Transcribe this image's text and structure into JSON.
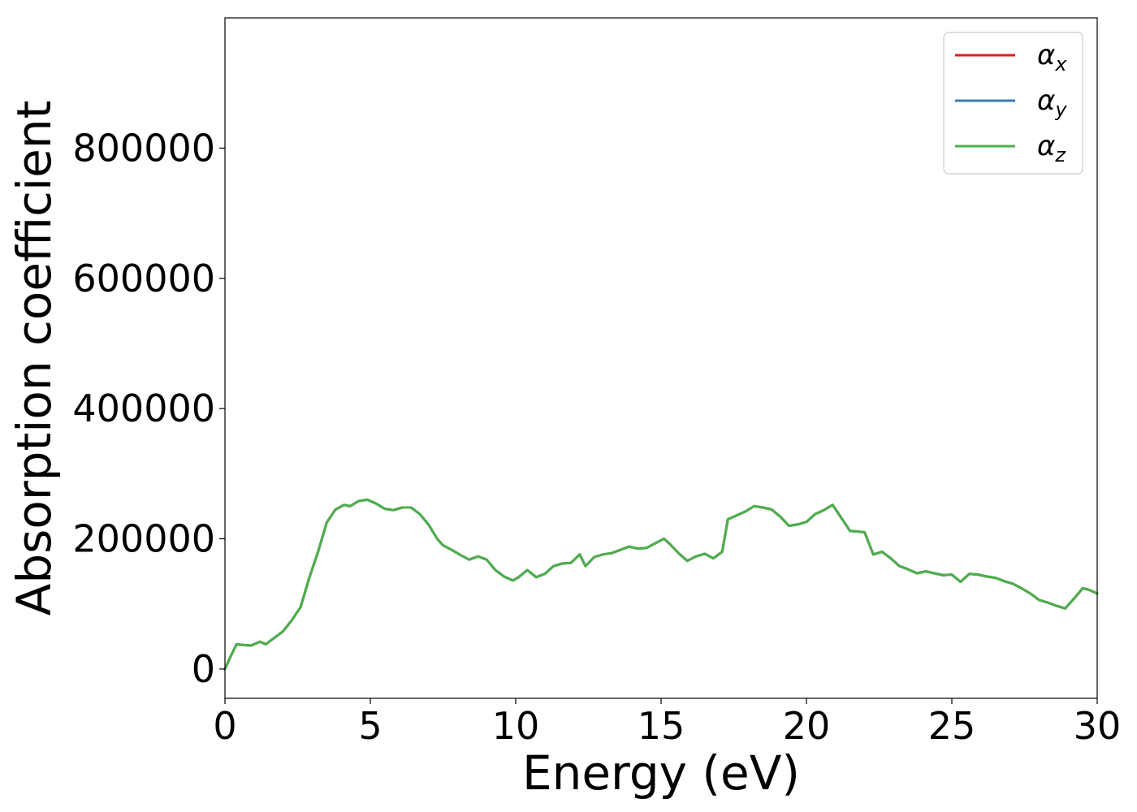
{
  "chart_data": {
    "type": "line",
    "xlabel": "Energy (eV)",
    "ylabel": "Absorption coefficient",
    "xlim": [
      0,
      30
    ],
    "ylim": [
      -45000,
      1000000
    ],
    "xticks": [
      0,
      5,
      10,
      15,
      20,
      25,
      30
    ],
    "yticks": [
      0,
      200000,
      400000,
      600000,
      800000
    ],
    "grid": false,
    "legend_position": "top-right",
    "x": [
      0,
      0.2,
      0.4,
      0.6,
      0.9,
      1.2,
      1.4,
      1.7,
      2.0,
      2.3,
      2.6,
      2.9,
      3.2,
      3.5,
      3.8,
      4.1,
      4.3,
      4.6,
      4.9,
      5.2,
      5.5,
      5.8,
      6.1,
      6.4,
      6.7,
      7.0,
      7.3,
      7.5,
      7.8,
      8.1,
      8.4,
      8.7,
      9.0,
      9.3,
      9.6,
      9.9,
      10.1,
      10.4,
      10.7,
      11.0,
      11.3,
      11.6,
      11.9,
      12.2,
      12.4,
      12.7,
      13.0,
      13.3,
      13.6,
      13.9,
      14.2,
      14.5,
      14.8,
      15.1,
      15.3,
      15.6,
      15.9,
      16.2,
      16.5,
      16.8,
      17.1,
      17.3,
      17.6,
      17.9,
      18.2,
      18.5,
      18.8,
      19.1,
      19.4,
      19.7,
      20.0,
      20.3,
      20.6,
      20.9,
      21.2,
      21.5,
      21.8,
      22.0,
      22.3,
      22.6,
      22.9,
      23.2,
      23.5,
      23.8,
      24.1,
      24.4,
      24.7,
      25.0,
      25.3,
      25.6,
      25.9,
      26.2,
      26.5,
      26.8,
      27.1,
      27.4,
      27.7,
      28.0,
      28.3,
      28.6,
      28.9,
      29.2,
      29.5,
      29.7,
      30.0
    ],
    "series": [
      {
        "name": "α",
        "subscript": "x",
        "color": "#e41a1c",
        "values": [
          0,
          20000,
          38000,
          37000,
          36000,
          42000,
          38000,
          48000,
          58000,
          75000,
          95000,
          140000,
          180000,
          225000,
          245000,
          252000,
          250000,
          258000,
          260000,
          254000,
          246000,
          244000,
          248000,
          248000,
          238000,
          222000,
          200000,
          190000,
          183000,
          175000,
          168000,
          173000,
          168000,
          152000,
          142000,
          136000,
          141000,
          152000,
          141000,
          146000,
          158000,
          162000,
          163000,
          176000,
          158000,
          172000,
          176000,
          178000,
          183000,
          188000,
          185000,
          186000,
          193000,
          200000,
          192000,
          178000,
          166000,
          173000,
          177000,
          170000,
          180000,
          230000,
          236000,
          242000,
          250000,
          248000,
          245000,
          234000,
          220000,
          222000,
          226000,
          238000,
          244000,
          252000,
          232000,
          212000,
          211000,
          210000,
          176000,
          180000,
          170000,
          158000,
          153000,
          147000,
          150000,
          147000,
          144000,
          145000,
          134000,
          146000,
          145000,
          142000,
          140000,
          135000,
          131000,
          124000,
          116000,
          106000,
          102000,
          97000,
          93000,
          108000,
          124000,
          122000,
          116000
        ]
      },
      {
        "name": "α",
        "subscript": "y",
        "color": "#377eb8",
        "values": [
          0,
          20000,
          38000,
          37000,
          36000,
          42000,
          38000,
          48000,
          58000,
          75000,
          95000,
          140000,
          180000,
          225000,
          245000,
          252000,
          250000,
          258000,
          260000,
          254000,
          246000,
          244000,
          248000,
          248000,
          238000,
          222000,
          200000,
          190000,
          183000,
          175000,
          168000,
          173000,
          168000,
          152000,
          142000,
          136000,
          141000,
          152000,
          141000,
          146000,
          158000,
          162000,
          163000,
          176000,
          158000,
          172000,
          176000,
          178000,
          183000,
          188000,
          185000,
          186000,
          193000,
          200000,
          192000,
          178000,
          166000,
          173000,
          177000,
          170000,
          180000,
          230000,
          236000,
          242000,
          250000,
          248000,
          245000,
          234000,
          220000,
          222000,
          226000,
          238000,
          244000,
          252000,
          232000,
          212000,
          211000,
          210000,
          176000,
          180000,
          170000,
          158000,
          153000,
          147000,
          150000,
          147000,
          144000,
          145000,
          134000,
          146000,
          145000,
          142000,
          140000,
          135000,
          131000,
          124000,
          116000,
          106000,
          102000,
          97000,
          93000,
          108000,
          124000,
          122000,
          116000
        ]
      },
      {
        "name": "α",
        "subscript": "z",
        "color": "#4daf4a",
        "values": [
          0,
          20000,
          38000,
          37000,
          36000,
          42000,
          38000,
          48000,
          58000,
          75000,
          95000,
          140000,
          180000,
          225000,
          245000,
          252000,
          250000,
          258000,
          260000,
          254000,
          246000,
          244000,
          248000,
          248000,
          238000,
          222000,
          200000,
          190000,
          183000,
          175000,
          168000,
          173000,
          168000,
          152000,
          142000,
          136000,
          141000,
          152000,
          141000,
          146000,
          158000,
          162000,
          163000,
          176000,
          158000,
          172000,
          176000,
          178000,
          183000,
          188000,
          185000,
          186000,
          193000,
          200000,
          192000,
          178000,
          166000,
          173000,
          177000,
          170000,
          180000,
          230000,
          236000,
          242000,
          250000,
          248000,
          245000,
          234000,
          220000,
          222000,
          226000,
          238000,
          244000,
          252000,
          232000,
          212000,
          211000,
          210000,
          176000,
          180000,
          170000,
          158000,
          153000,
          147000,
          150000,
          147000,
          144000,
          145000,
          134000,
          146000,
          145000,
          142000,
          140000,
          135000,
          131000,
          124000,
          116000,
          106000,
          102000,
          97000,
          93000,
          108000,
          124000,
          122000,
          116000
        ]
      }
    ]
  }
}
